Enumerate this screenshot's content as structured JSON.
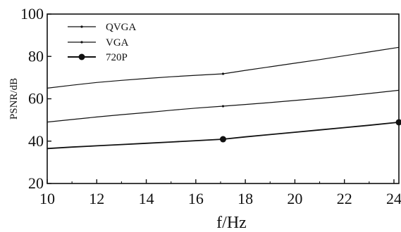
{
  "chart_data": {
    "type": "line",
    "title": "",
    "xlabel": "f/Hz",
    "ylabel": "PSNR/dB",
    "xlim": [
      10,
      24.2
    ],
    "ylim": [
      20,
      100
    ],
    "xticks": [
      10,
      12,
      14,
      16,
      18,
      20,
      22,
      24
    ],
    "yticks": [
      20,
      40,
      60,
      80,
      100
    ],
    "grid": false,
    "legend_position": "top-left",
    "series": [
      {
        "name": "QVGA",
        "marker": "small-tick",
        "marker_x": [
          17.1
        ],
        "x": [
          10,
          11,
          12,
          13,
          14,
          15,
          16,
          17.1,
          18,
          19,
          20,
          21,
          22,
          23,
          24.2
        ],
        "y": [
          65,
          66.4,
          67.7,
          68.7,
          69.6,
          70.4,
          71.1,
          71.8,
          73.4,
          75.1,
          76.8,
          78.5,
          80.3,
          82.1,
          84.3
        ]
      },
      {
        "name": "VGA",
        "marker": "small-tick",
        "marker_x": [
          17.1
        ],
        "x": [
          10,
          11,
          12,
          13,
          14,
          15,
          16,
          17.1,
          18,
          19,
          20,
          21,
          22,
          23,
          24.2
        ],
        "y": [
          49,
          50.2,
          51.4,
          52.5,
          53.5,
          54.6,
          55.6,
          56.5,
          57.3,
          58.2,
          59.2,
          60.2,
          61.3,
          62.5,
          64
        ]
      },
      {
        "name": "720P",
        "marker": "filled-circle",
        "marker_x": [
          17.1,
          24.2
        ],
        "x": [
          10,
          11,
          12,
          13,
          14,
          15,
          16,
          17.1,
          18,
          19,
          20,
          21,
          22,
          23,
          24.2
        ],
        "y": [
          36.5,
          37.2,
          37.8,
          38.4,
          39,
          39.6,
          40.2,
          40.9,
          42,
          43.1,
          44.2,
          45.3,
          46.4,
          47.5,
          48.9
        ]
      }
    ]
  }
}
